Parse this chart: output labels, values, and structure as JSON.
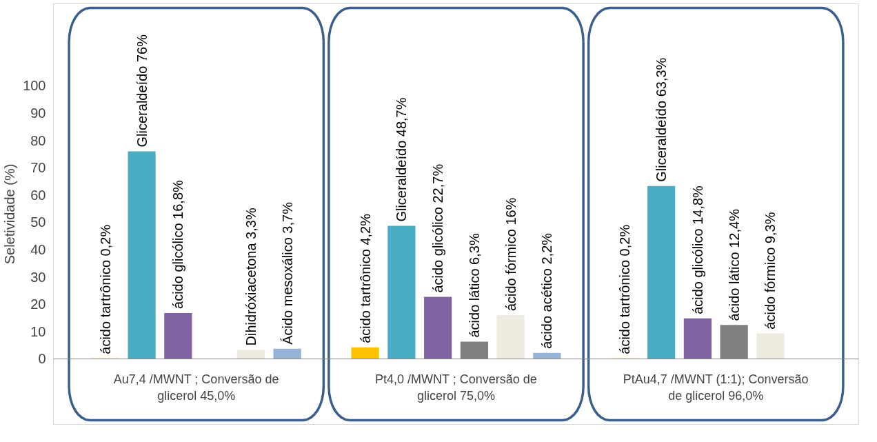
{
  "chart_data": {
    "type": "bar",
    "ylabel": "Seletividade (%)",
    "categories": [
      "Au7,4 /MWNT ; Conversão de glicerol 45,0%",
      "Pt4,0 /MWNT ; Conversão de glicerol 75,0%",
      "PtAu4,7 /MWNT (1:1); Conversão de glicerol 96,0%"
    ],
    "series": [
      {
        "color": "#ffc000",
        "values": [
          0.2,
          4.2,
          0.2
        ],
        "value_labels": [
          "ácido tartrônico 0,2%",
          "ácido tartrônico 4,2%",
          "ácido tartrônico 0,2%"
        ]
      },
      {
        "color": "#4bacc6",
        "values": [
          76,
          48.7,
          63.3
        ],
        "value_labels": [
          "Gliceraldeído 76%",
          "Gliceraldeído 48,7%",
          "Gliceraldeído 63,3%"
        ]
      },
      {
        "color": "#8064a2",
        "values": [
          16.8,
          22.7,
          14.8
        ],
        "value_labels": [
          "ácido glicólico 16,8%",
          "ácido glicólico 22,7%",
          "ácido glicólico 14,8%"
        ]
      },
      {
        "color": "#7f7f7f",
        "values": [
          null,
          6.3,
          12.4
        ],
        "value_labels": [
          null,
          "ácido lático 6,3%",
          "ácido lático 12,4%"
        ]
      },
      {
        "color": "#eeece1",
        "values": [
          3.3,
          16,
          9.3
        ],
        "value_labels": [
          "Dihidróxiacetona 3,3%",
          "ácido fórmico 16%",
          "ácido fórmico 9,3%"
        ]
      },
      {
        "color": "#95b3d7",
        "values": [
          3.7,
          2.2,
          null
        ],
        "value_labels": [
          "Ácido mesoxálico 3,7%",
          "ácido acético 2,2%",
          null
        ]
      }
    ],
    "ylim": [
      -24,
      130
    ],
    "yticks": [
      0,
      10,
      20,
      30,
      40,
      50,
      60,
      70,
      80,
      90,
      100
    ],
    "grid": false
  }
}
